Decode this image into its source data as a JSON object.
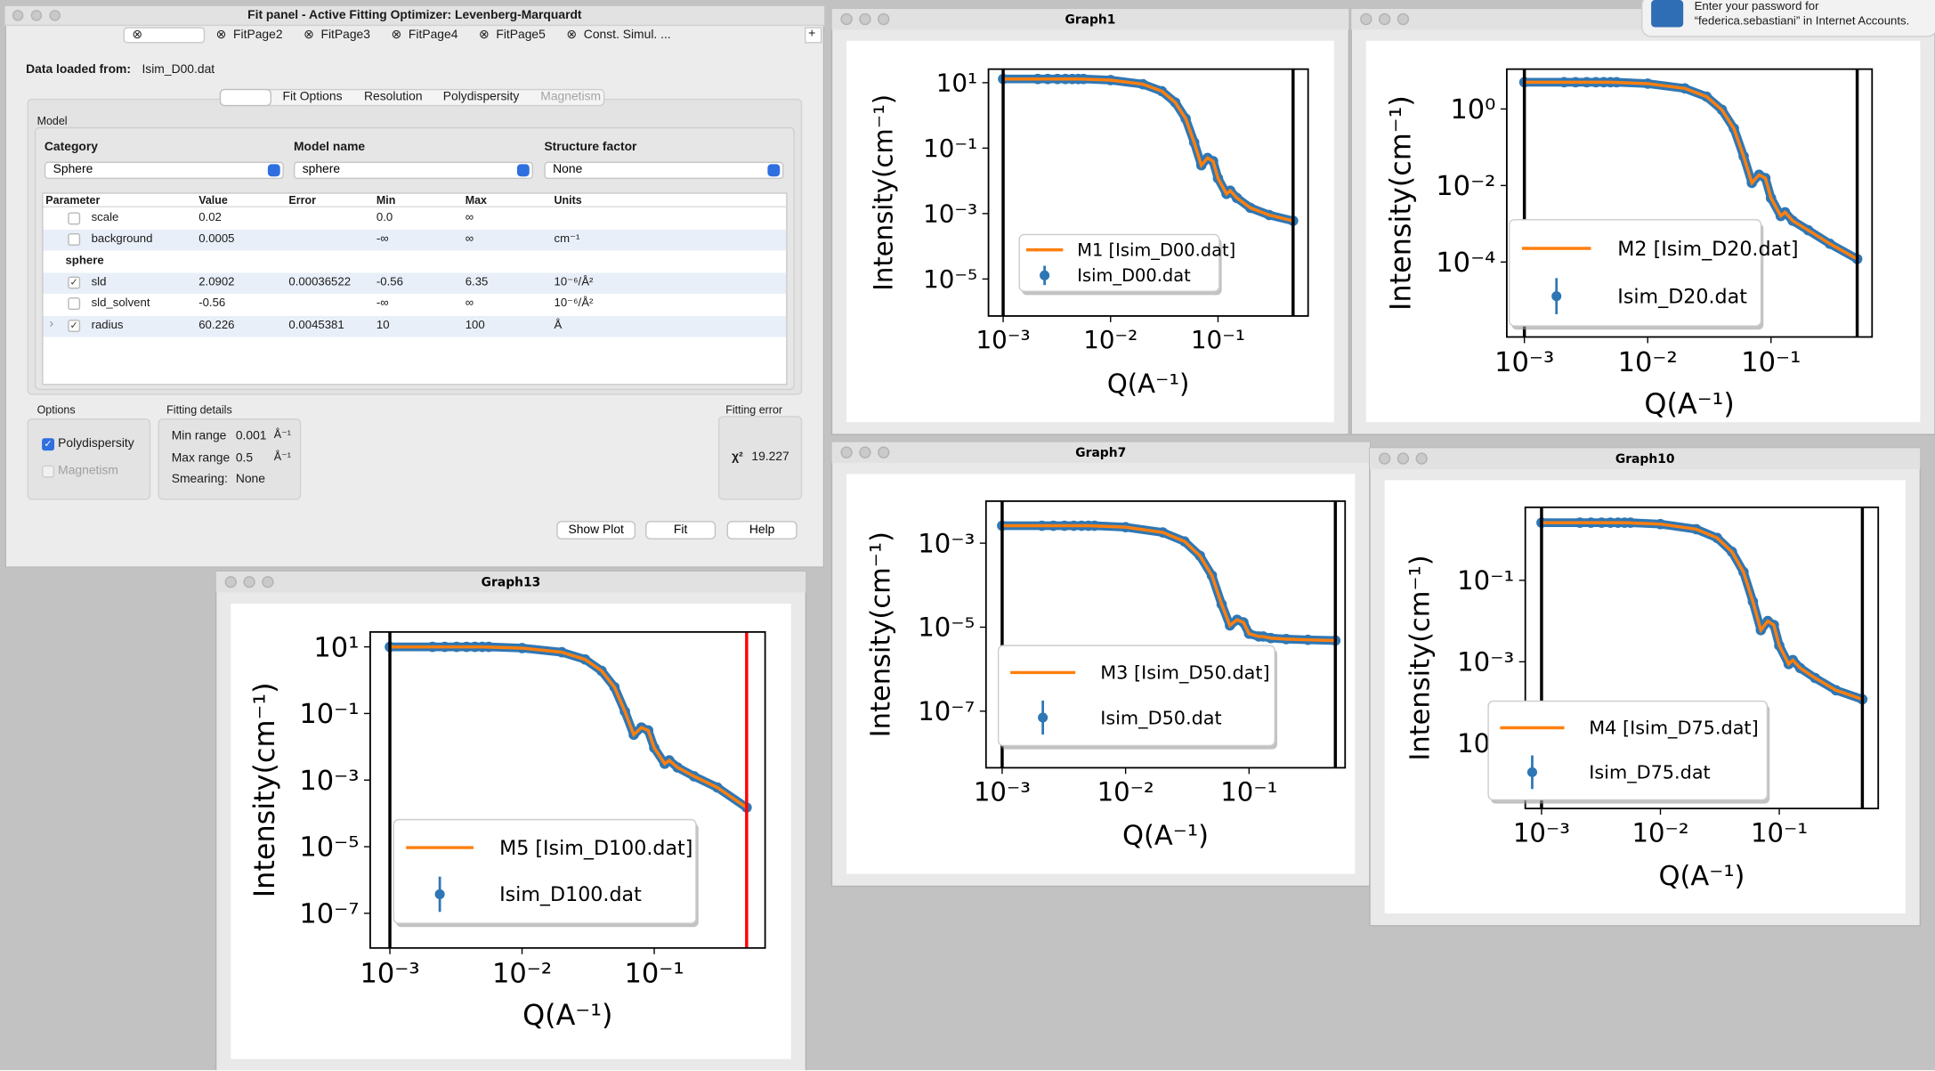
{
  "fit_panel": {
    "title": "Fit panel - Active Fitting Optimizer: Levenberg-Marquardt",
    "tabs": [
      "FitPage2",
      "FitPage3",
      "FitPage4",
      "FitPage5",
      "Const. Simul. ..."
    ],
    "add_tab": "+",
    "data_loaded_label": "Data loaded from:",
    "data_file": "Isim_D00.dat",
    "subtabs": [
      "Fit Options",
      "Resolution",
      "Polydispersity",
      "Magnetism"
    ],
    "model_group": "Model",
    "category_label": "Category",
    "category": "Sphere",
    "model_name_label": "Model name",
    "model_name": "sphere",
    "structure_factor_label": "Structure factor",
    "structure_factor": "None",
    "table": {
      "headers": [
        "Parameter",
        "Value",
        "Error",
        "Min",
        "Max",
        "Units"
      ],
      "rows": [
        {
          "name": "scale",
          "value": "0.02",
          "min": "0.0",
          "max": "∞",
          "checked": false
        },
        {
          "name": "background",
          "value": "0.0005",
          "min": "-∞",
          "max": "∞",
          "units": "cm⁻¹",
          "checked": false
        },
        {
          "section": "sphere"
        },
        {
          "name": "sld",
          "value": "2.0902",
          "error": "0.00036522",
          "min": "-0.56",
          "max": "6.35",
          "units": "10⁻⁶/Å²",
          "checked": true
        },
        {
          "name": "sld_solvent",
          "value": "-0.56",
          "min": "-∞",
          "max": "∞",
          "units": "10⁻⁶/Å²",
          "checked": false
        },
        {
          "name": "radius",
          "value": "60.226",
          "error": "0.0045381",
          "min": "10",
          "max": "100",
          "units": "Å",
          "checked": true,
          "expand": "›"
        }
      ]
    },
    "options_label": "Options",
    "polydispersity": "Polydispersity",
    "polydispersity_checked": true,
    "magnetism": "Magnetism",
    "fitting_details_label": "Fitting details",
    "min_range_label": "Min range",
    "min_range": "0.001",
    "max_range_label": "Max range",
    "max_range": "0.5",
    "range_unit": "Å⁻¹",
    "smearing_label": "Smearing:",
    "smearing": "None",
    "fitting_error_label": "Fitting error",
    "chi2_label": "χ²",
    "chi2": "19.227",
    "buttons": [
      "Show Plot",
      "Fit",
      "Help"
    ]
  },
  "notification": {
    "lines": [
      "Enter your password for",
      "“federica.sebastiani” in Internet Accounts."
    ]
  },
  "chart_data": [
    {
      "type": "line",
      "title": "Graph1",
      "xlabel": "Q(A⁻¹)",
      "ylabel": "Intensity(cm⁻¹)",
      "xscale": "log",
      "yscale": "log",
      "xlim": [
        0.00073,
        0.69
      ],
      "ylim": [
        7.4e-07,
        26
      ],
      "xticks": [
        {
          "value": 0.001,
          "label": "10⁻³"
        },
        {
          "value": 0.01,
          "label": "10⁻²"
        },
        {
          "value": 0.1,
          "label": "10⁻¹"
        }
      ],
      "yticks": [
        {
          "value": 10,
          "label": "10¹"
        },
        {
          "value": 0.1,
          "label": "10⁻¹"
        },
        {
          "value": 0.001,
          "label": "10⁻³"
        },
        {
          "value": 1e-05,
          "label": "10⁻⁵"
        }
      ],
      "vlines": [
        0.001,
        0.5
      ],
      "vline_colors": [
        "#000000",
        "#000000"
      ],
      "series": [
        {
          "name": "M1 [Isim_D00.dat]",
          "color": "#ff7f0e",
          "x": [
            0.001,
            0.005,
            0.01,
            0.02,
            0.03,
            0.04,
            0.05,
            0.06,
            0.07,
            0.08,
            0.09,
            0.1,
            0.12,
            0.13,
            0.15,
            0.2,
            0.3,
            0.5
          ],
          "values": [
            13,
            13,
            12,
            9,
            5.5,
            2.5,
            0.8,
            0.15,
            0.03,
            0.05,
            0.04,
            0.012,
            0.004,
            0.005,
            0.003,
            0.0015,
            0.0009,
            0.0006
          ]
        },
        {
          "name": "Isim_D00.dat",
          "color": "#2f77b4",
          "marker": true,
          "x": [
            0.001,
            0.0021,
            0.0026,
            0.0032,
            0.0038,
            0.0044,
            0.005,
            0.0056,
            0.01,
            0.02,
            0.03,
            0.04,
            0.05,
            0.06,
            0.07,
            0.08,
            0.09,
            0.1,
            0.12,
            0.13,
            0.15,
            0.2,
            0.3,
            0.5
          ],
          "values": [
            13,
            13,
            13,
            13,
            13,
            13,
            13,
            13,
            12,
            9,
            5.5,
            2.5,
            0.8,
            0.15,
            0.03,
            0.05,
            0.04,
            0.012,
            0.004,
            0.005,
            0.003,
            0.0015,
            0.0009,
            0.0006
          ]
        }
      ]
    },
    {
      "type": "line",
      "xlabel": "Q(A⁻¹)",
      "ylabel": "Intensity(cm⁻¹)",
      "xscale": "log",
      "yscale": "log",
      "xlim": [
        0.00072,
        0.66
      ],
      "ylim": [
        1.1e-06,
        11
      ],
      "xticks": [
        {
          "value": 0.001,
          "label": "10⁻³"
        },
        {
          "value": 0.01,
          "label": "10⁻²"
        },
        {
          "value": 0.1,
          "label": "10⁻¹"
        }
      ],
      "yticks": [
        {
          "value": 1,
          "label": "10⁰"
        },
        {
          "value": 0.01,
          "label": "10⁻²"
        },
        {
          "value": 0.0001,
          "label": "10⁻⁴"
        }
      ],
      "vlines": [
        0.001,
        0.5
      ],
      "vline_colors": [
        "#000000",
        "#000000"
      ],
      "series": [
        {
          "name": "M2 [Isim_D20.dat]",
          "color": "#ff7f0e",
          "x": [
            0.001,
            0.005,
            0.01,
            0.02,
            0.03,
            0.04,
            0.05,
            0.06,
            0.07,
            0.08,
            0.09,
            0.1,
            0.12,
            0.13,
            0.15,
            0.2,
            0.3,
            0.5
          ],
          "values": [
            5,
            5,
            4.6,
            3.45,
            2.1,
            0.95,
            0.31,
            0.058,
            0.0117,
            0.019,
            0.0156,
            0.0047,
            0.0016,
            0.002,
            0.0012,
            0.00068,
            0.0003,
            0.00012
          ]
        },
        {
          "name": "Isim_D20.dat",
          "color": "#2f77b4",
          "marker": true,
          "x": [
            0.001,
            0.0021,
            0.0026,
            0.0032,
            0.0038,
            0.0044,
            0.005,
            0.0056,
            0.01,
            0.02,
            0.03,
            0.04,
            0.05,
            0.06,
            0.07,
            0.08,
            0.09,
            0.1,
            0.12,
            0.13,
            0.15,
            0.2,
            0.3,
            0.5
          ],
          "values": [
            5,
            5,
            5,
            5,
            5,
            5,
            5,
            5,
            4.6,
            3.45,
            2.1,
            0.95,
            0.31,
            0.058,
            0.0117,
            0.019,
            0.0156,
            0.0047,
            0.0016,
            0.002,
            0.0012,
            0.00068,
            0.0003,
            0.00012
          ]
        }
      ]
    },
    {
      "type": "line",
      "title": "Graph7",
      "xlabel": "Q(A⁻¹)",
      "ylabel": "Intensity(cm⁻¹)",
      "xscale": "log",
      "yscale": "log",
      "xlim": [
        0.00074,
        0.6
      ],
      "ylim": [
        4.5e-09,
        0.01
      ],
      "xticks": [
        {
          "value": 0.001,
          "label": "10⁻³"
        },
        {
          "value": 0.01,
          "label": "10⁻²"
        },
        {
          "value": 0.1,
          "label": "10⁻¹"
        }
      ],
      "yticks": [
        {
          "value": 0.001,
          "label": "10⁻³"
        },
        {
          "value": 1e-05,
          "label": "10⁻⁵"
        },
        {
          "value": 1e-07,
          "label": "10⁻⁷"
        }
      ],
      "vlines": [
        0.001,
        0.5
      ],
      "vline_colors": [
        "#000000",
        "#000000"
      ],
      "series": [
        {
          "name": "M3 [Isim_D50.dat]",
          "color": "#ff7f0e",
          "x": [
            0.001,
            0.005,
            0.01,
            0.02,
            0.03,
            0.04,
            0.05,
            0.06,
            0.07,
            0.08,
            0.09,
            0.1,
            0.12,
            0.13,
            0.15,
            0.2,
            0.3,
            0.5
          ],
          "values": [
            0.0026,
            0.0026,
            0.0024,
            0.0018,
            0.0011,
            0.0005,
            0.00017,
            3.5e-05,
            1.1e-05,
            1.5e-05,
            1.3e-05,
            7e-06,
            6e-06,
            6e-06,
            5.5e-06,
            5.2e-06,
            5e-06,
            4.8e-06
          ]
        },
        {
          "name": "Isim_D50.dat",
          "color": "#2f77b4",
          "marker": true,
          "x": [
            0.001,
            0.0021,
            0.0026,
            0.0032,
            0.0038,
            0.0044,
            0.005,
            0.0056,
            0.01,
            0.02,
            0.03,
            0.04,
            0.05,
            0.06,
            0.07,
            0.08,
            0.09,
            0.1,
            0.12,
            0.13,
            0.15,
            0.2,
            0.3,
            0.5
          ],
          "values": [
            0.0026,
            0.0026,
            0.0026,
            0.0026,
            0.0026,
            0.0026,
            0.0026,
            0.0026,
            0.0024,
            0.0018,
            0.0011,
            0.0005,
            0.00017,
            3.5e-05,
            1.1e-05,
            1.5e-05,
            1.3e-05,
            7e-06,
            6e-06,
            6e-06,
            5.5e-06,
            5.2e-06,
            5e-06,
            4.8e-06
          ]
        }
      ]
    },
    {
      "type": "line",
      "title": "Graph10",
      "xlabel": "Q(A⁻¹)",
      "ylabel": "Intensity(cm⁻¹)",
      "xscale": "log",
      "yscale": "log",
      "xlim": [
        0.00073,
        0.68
      ],
      "ylim": [
        2.5e-07,
        6.2
      ],
      "xticks": [
        {
          "value": 0.001,
          "label": "10⁻³"
        },
        {
          "value": 0.01,
          "label": "10⁻²"
        },
        {
          "value": 0.1,
          "label": "10⁻¹"
        }
      ],
      "yticks": [
        {
          "value": 0.1,
          "label": "10⁻¹"
        },
        {
          "value": 0.001,
          "label": "10⁻³"
        },
        {
          "value": 1e-05,
          "label": "10⁻⁵"
        }
      ],
      "vlines": [
        0.001,
        0.5
      ],
      "vline_colors": [
        "#000000",
        "#000000"
      ],
      "series": [
        {
          "name": "M4 [Isim_D75.dat]",
          "color": "#ff7f0e",
          "x": [
            0.001,
            0.005,
            0.01,
            0.02,
            0.03,
            0.04,
            0.05,
            0.06,
            0.07,
            0.08,
            0.09,
            0.1,
            0.12,
            0.13,
            0.15,
            0.2,
            0.3,
            0.5
          ],
          "values": [
            2.6,
            2.6,
            2.4,
            1.8,
            1.1,
            0.5,
            0.16,
            0.03,
            0.006,
            0.01,
            0.008,
            0.0025,
            0.00088,
            0.0011,
            0.0007,
            0.0004,
            0.0002,
            0.00012
          ]
        },
        {
          "name": "Isim_D75.dat",
          "color": "#2f77b4",
          "marker": true,
          "x": [
            0.001,
            0.0021,
            0.0026,
            0.0032,
            0.0038,
            0.0044,
            0.005,
            0.0056,
            0.01,
            0.02,
            0.03,
            0.04,
            0.05,
            0.06,
            0.07,
            0.08,
            0.09,
            0.1,
            0.12,
            0.13,
            0.15,
            0.2,
            0.3,
            0.5
          ],
          "values": [
            2.6,
            2.6,
            2.6,
            2.6,
            2.6,
            2.6,
            2.6,
            2.6,
            2.4,
            1.8,
            1.1,
            0.5,
            0.16,
            0.03,
            0.006,
            0.01,
            0.008,
            0.0025,
            0.00088,
            0.0011,
            0.0007,
            0.0004,
            0.0002,
            0.00012
          ]
        }
      ]
    },
    {
      "type": "line",
      "title": "Graph13",
      "xlabel": "Q(A⁻¹)",
      "ylabel": "Intensity(cm⁻¹)",
      "xscale": "log",
      "yscale": "log",
      "xlim": [
        0.00071,
        0.69
      ],
      "ylim": [
        9.1e-09,
        28
      ],
      "xticks": [
        {
          "value": 0.001,
          "label": "10⁻³"
        },
        {
          "value": 0.01,
          "label": "10⁻²"
        },
        {
          "value": 0.1,
          "label": "10⁻¹"
        }
      ],
      "yticks": [
        {
          "value": 10,
          "label": "10¹"
        },
        {
          "value": 0.1,
          "label": "10⁻¹"
        },
        {
          "value": 0.001,
          "label": "10⁻³"
        },
        {
          "value": 1e-05,
          "label": "10⁻⁵"
        },
        {
          "value": 1e-07,
          "label": "10⁻⁷"
        }
      ],
      "vlines": [
        0.001,
        0.5
      ],
      "vline_colors": [
        "#000000",
        "#ff0000"
      ],
      "series": [
        {
          "name": "M5 [Isim_D100.dat]",
          "color": "#ff7f0e",
          "x": [
            0.001,
            0.005,
            0.01,
            0.02,
            0.03,
            0.04,
            0.05,
            0.06,
            0.07,
            0.08,
            0.09,
            0.1,
            0.12,
            0.13,
            0.15,
            0.2,
            0.3,
            0.5
          ],
          "values": [
            10,
            10,
            9.2,
            6.9,
            4.2,
            1.9,
            0.62,
            0.115,
            0.023,
            0.038,
            0.031,
            0.0093,
            0.0031,
            0.0039,
            0.0024,
            0.0013,
            0.0006,
            0.00015
          ]
        },
        {
          "name": "Isim_D100.dat",
          "color": "#2f77b4",
          "marker": true,
          "x": [
            0.001,
            0.0021,
            0.0026,
            0.0032,
            0.0038,
            0.0044,
            0.005,
            0.0056,
            0.01,
            0.02,
            0.03,
            0.04,
            0.05,
            0.06,
            0.07,
            0.08,
            0.09,
            0.1,
            0.12,
            0.13,
            0.15,
            0.2,
            0.3,
            0.5
          ],
          "values": [
            10,
            10,
            10,
            10,
            10,
            10,
            10,
            10,
            9.2,
            6.9,
            4.2,
            1.9,
            0.62,
            0.115,
            0.023,
            0.038,
            0.031,
            0.0093,
            0.0031,
            0.0039,
            0.0024,
            0.0013,
            0.0006,
            0.00015
          ]
        }
      ]
    }
  ]
}
